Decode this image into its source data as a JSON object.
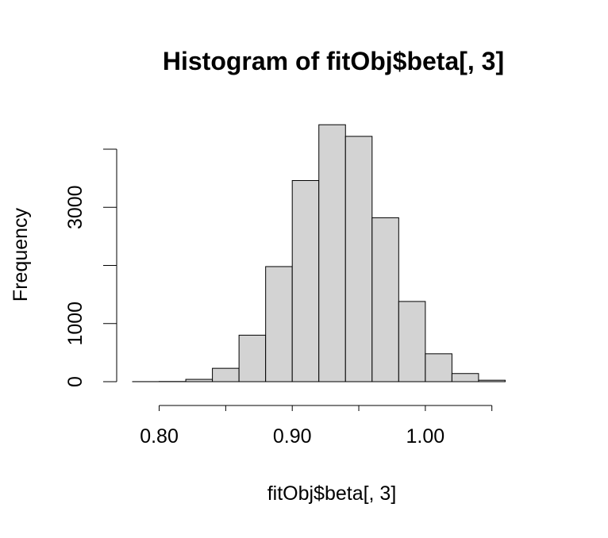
{
  "chart_data": {
    "type": "histogram",
    "title": "Histogram of fitObj$beta[, 3]",
    "xlabel": "fitObj$beta[, 3]",
    "ylabel": "Frequency",
    "bin_edges": [
      0.78,
      0.8,
      0.82,
      0.84,
      0.86,
      0.88,
      0.9,
      0.92,
      0.94,
      0.96,
      0.98,
      1.0,
      1.02,
      1.04,
      1.06
    ],
    "values": [
      1,
      3,
      40,
      230,
      800,
      1980,
      3460,
      4420,
      4220,
      2820,
      1380,
      480,
      140,
      25
    ],
    "xlim": [
      0.78,
      1.08
    ],
    "ylim": [
      0,
      4600
    ],
    "x_ticks": [
      0.8,
      0.85,
      0.9,
      0.95,
      1.0,
      1.05
    ],
    "x_tick_labels": [
      "0.80",
      "",
      "0.90",
      "",
      "1.00",
      ""
    ],
    "y_ticks": [
      0,
      1000,
      2000,
      3000,
      4000
    ],
    "y_tick_labels": [
      "0",
      "1000",
      "",
      "3000",
      ""
    ],
    "bar_fill": "#d3d3d3",
    "bar_stroke": "#000000",
    "grid": false,
    "legend": "none"
  }
}
